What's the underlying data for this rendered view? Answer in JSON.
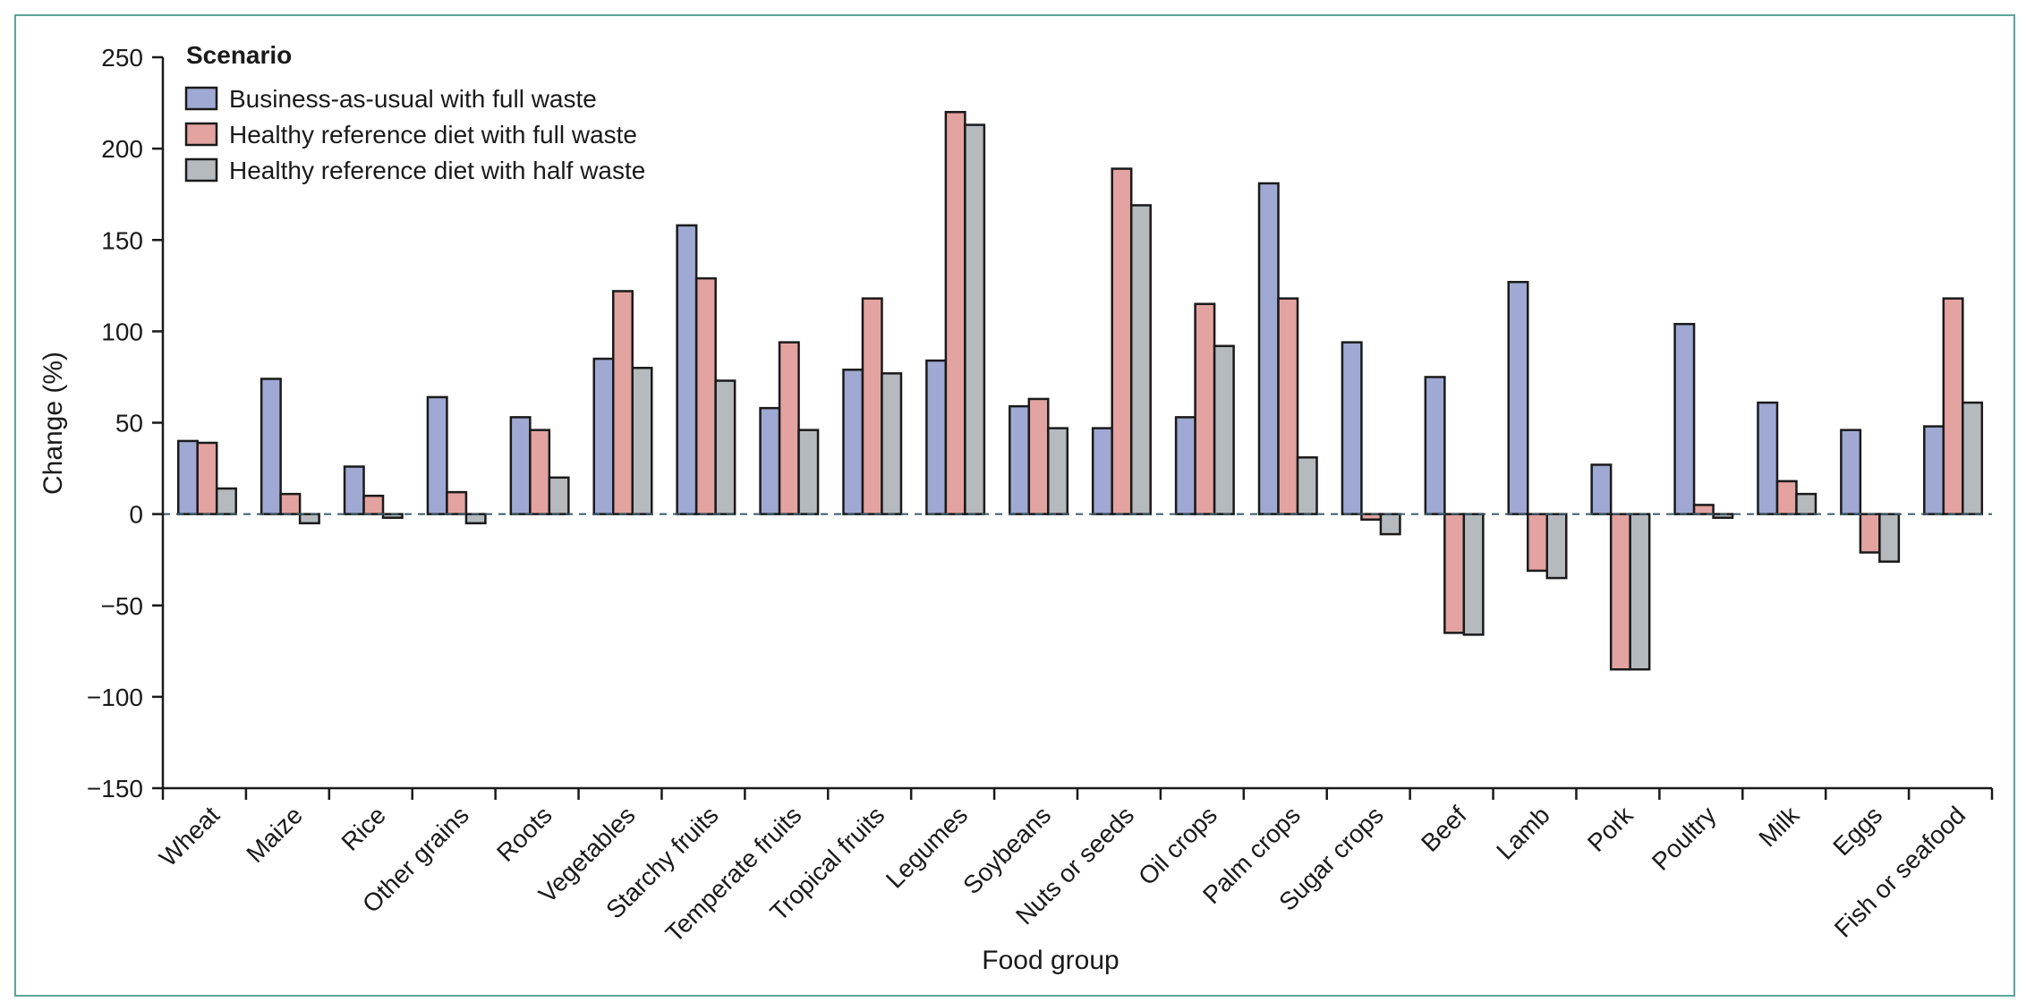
{
  "chart_data": {
    "type": "bar",
    "title": "",
    "xlabel": "Food group",
    "ylabel": "Change (%)",
    "ylim": [
      -150,
      250
    ],
    "yticks": [
      -150,
      -100,
      -50,
      0,
      50,
      100,
      150,
      200,
      250
    ],
    "ytick_labels": [
      "−150",
      "−100",
      "−50",
      "0",
      "50",
      "100",
      "150",
      "200",
      "250"
    ],
    "grid": false,
    "zero_line": "dashed",
    "legend": {
      "title": "Scenario",
      "position": "top-left"
    },
    "categories": [
      "Wheat",
      "Maize",
      "Rice",
      "Other grains",
      "Roots",
      "Vegetables",
      "Starchy fruits",
      "Temperate fruits",
      "Tropical fruits",
      "Legumes",
      "Soybeans",
      "Nuts or seeds",
      "Oil crops",
      "Palm crops",
      "Sugar crops",
      "Beef",
      "Lamb",
      "Pork",
      "Poultry",
      "Milk",
      "Eggs",
      "Fish or seafood"
    ],
    "series": [
      {
        "name": "Business-as-usual with full waste",
        "color": "#9fa9d3",
        "values": [
          40,
          74,
          26,
          64,
          53,
          85,
          158,
          58,
          79,
          84,
          59,
          47,
          53,
          181,
          94,
          75,
          127,
          27,
          104,
          61,
          46,
          48
        ]
      },
      {
        "name": "Healthy reference diet with full waste",
        "color": "#e3a3a0",
        "values": [
          39,
          11,
          10,
          12,
          46,
          122,
          129,
          94,
          118,
          220,
          63,
          189,
          115,
          118,
          -3,
          -65,
          -31,
          -85,
          5,
          18,
          -21,
          118
        ]
      },
      {
        "name": "Healthy reference diet with half waste",
        "color": "#b5babe",
        "values": [
          14,
          -5,
          -2,
          -5,
          20,
          80,
          73,
          46,
          77,
          213,
          47,
          169,
          92,
          31,
          -11,
          -66,
          -35,
          -85,
          -2,
          11,
          -26,
          61
        ]
      }
    ]
  }
}
